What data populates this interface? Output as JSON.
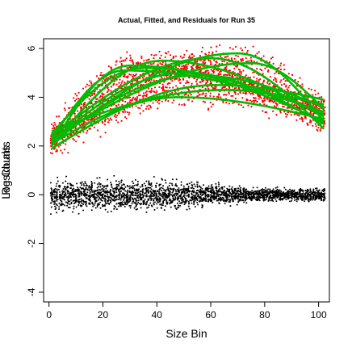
{
  "chart_data": {
    "type": "scatter",
    "title": "Actual, Fitted, and Residuals for Run 35",
    "xlabel": "Size Bin",
    "ylabel": "Log Counts",
    "ylabel_overlay": "Residuals",
    "xlim": [
      -2,
      104
    ],
    "ylim": [
      -4.4,
      6.4
    ],
    "x_ticks": [
      0,
      20,
      40,
      60,
      80,
      100
    ],
    "y_ticks": [
      -4,
      -2,
      0,
      2,
      4,
      6
    ],
    "grid": false,
    "legend": "none",
    "colors": {
      "actual": "#ff0000",
      "fitted": "#00bb00",
      "residual": "#000000"
    },
    "series": [
      {
        "key": "actual",
        "color": "#ff0000",
        "marker": "point"
      },
      {
        "key": "fitted",
        "color": "#00bb00",
        "marker": "line"
      },
      {
        "key": "residual",
        "color": "#000000",
        "marker": "point"
      }
    ],
    "fitted_curves": [
      {
        "start": 2.3,
        "peak": 5.1,
        "peak_x": 28,
        "end": 3.4
      },
      {
        "start": 2.0,
        "peak": 5.5,
        "peak_x": 42,
        "end": 3.2
      },
      {
        "start": 2.1,
        "peak": 5.8,
        "peak_x": 70,
        "end": 3.0
      },
      {
        "start": 2.2,
        "peak": 4.9,
        "peak_x": 55,
        "end": 3.6
      },
      {
        "start": 1.9,
        "peak": 4.5,
        "peak_x": 62,
        "end": 3.9
      },
      {
        "start": 2.4,
        "peak": 5.6,
        "peak_x": 60,
        "end": 2.7
      },
      {
        "start": 2.5,
        "peak": 5.2,
        "peak_x": 35,
        "end": 3.3
      },
      {
        "start": 2.1,
        "peak": 4.0,
        "peak_x": 48,
        "end": 3.1
      },
      {
        "start": 2.3,
        "peak": 5.4,
        "peak_x": 75,
        "end": 3.5
      },
      {
        "start": 2.2,
        "peak": 5.0,
        "peak_x": 50,
        "end": 2.9
      },
      {
        "start": 2.6,
        "peak": 4.3,
        "peak_x": 65,
        "end": 3.7
      },
      {
        "start": 2.0,
        "peak": 5.3,
        "peak_x": 30,
        "end": 3.0
      }
    ],
    "actual_spread": 0.35,
    "residual_spread": {
      "low_bins": 0.5,
      "high_bins": 0.2
    }
  }
}
